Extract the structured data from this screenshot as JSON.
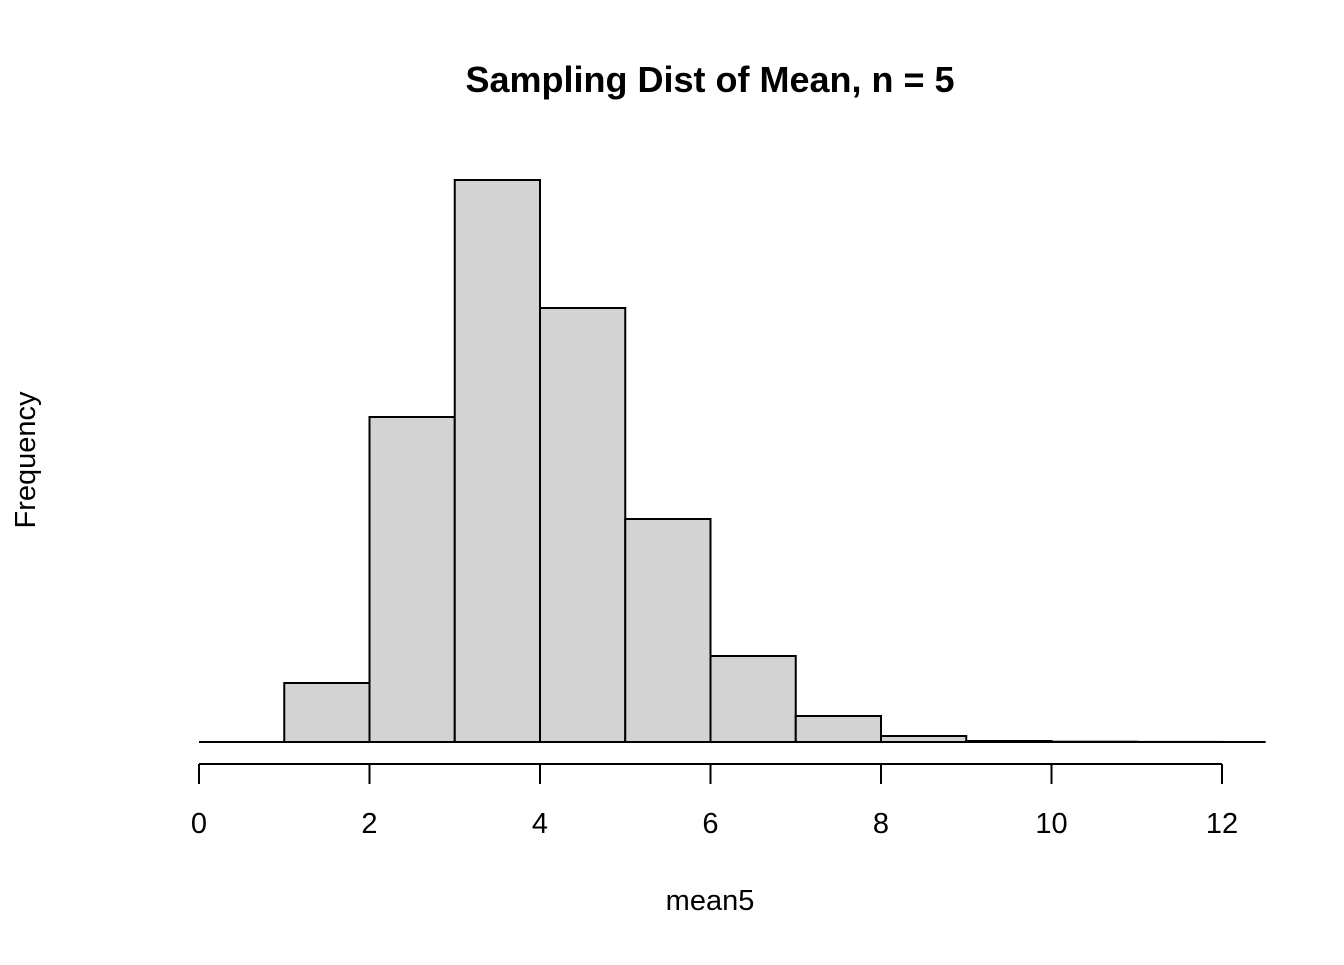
{
  "chart_data": {
    "type": "bar",
    "title": "Sampling Dist of Mean, n = 5",
    "xlabel": "mean5",
    "ylabel": "Frequency",
    "bins": [
      {
        "x0": 0,
        "x1": 1,
        "value": 0
      },
      {
        "x0": 1,
        "x1": 2,
        "value": 59
      },
      {
        "x0": 2,
        "x1": 3,
        "value": 325
      },
      {
        "x0": 3,
        "x1": 4,
        "value": 562
      },
      {
        "x0": 4,
        "x1": 5,
        "value": 434
      },
      {
        "x0": 5,
        "x1": 6,
        "value": 223
      },
      {
        "x0": 6,
        "x1": 7,
        "value": 86
      },
      {
        "x0": 7,
        "x1": 8,
        "value": 26
      },
      {
        "x0": 8,
        "x1": 9,
        "value": 6
      },
      {
        "x0": 9,
        "x1": 10,
        "value": 1
      },
      {
        "x0": 10,
        "x1": 11,
        "value": 0.3
      },
      {
        "x0": 11,
        "x1": 12,
        "value": 0.1
      }
    ],
    "xlim": [
      0,
      12.5
    ],
    "ylim": [
      0,
      562
    ],
    "x_ticks": [
      "0",
      "2",
      "4",
      "6",
      "8",
      "10",
      "12"
    ],
    "y_ticks": [],
    "grid": false,
    "legend": "none",
    "colors": {
      "bar_fill": "#d3d3d3",
      "bar_stroke": "#000000"
    }
  }
}
